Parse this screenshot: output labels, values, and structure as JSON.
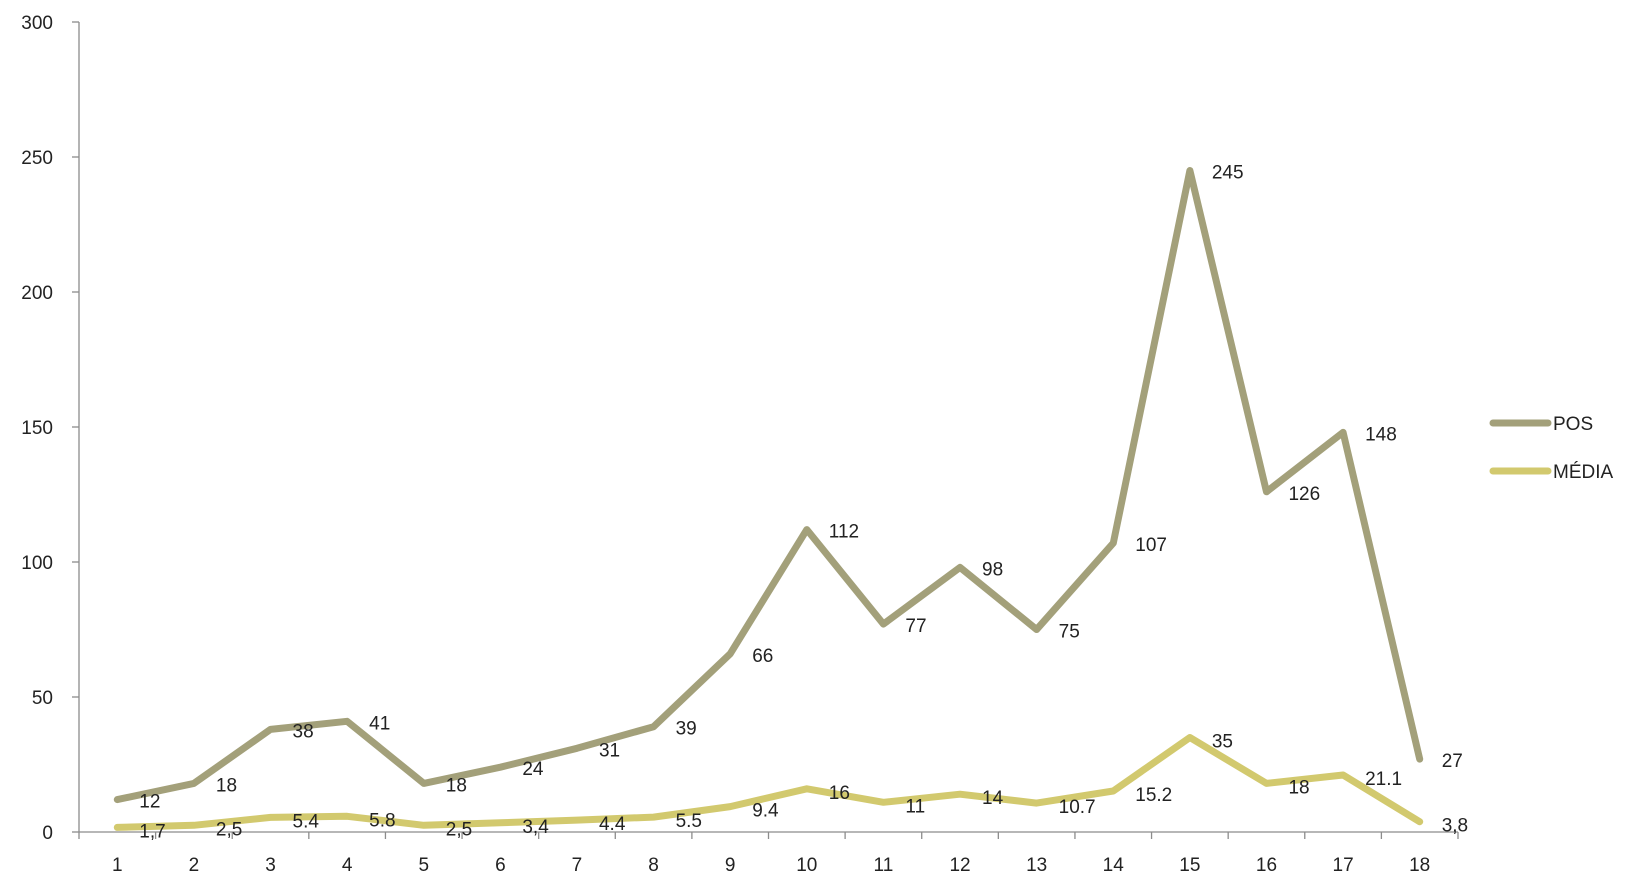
{
  "chart_data": {
    "type": "line",
    "title": "",
    "xlabel": "",
    "ylabel": "",
    "x": [
      "1",
      "2",
      "3",
      "4",
      "5",
      "6",
      "7",
      "8",
      "9",
      "10",
      "11",
      "12",
      "13",
      "14",
      "15",
      "16",
      "17",
      "18"
    ],
    "ylim": [
      0,
      300
    ],
    "yticks": [
      "0",
      "50",
      "100",
      "150",
      "200",
      "250",
      "300"
    ],
    "grid": false,
    "legend_position": "right",
    "series": [
      {
        "name": "POS",
        "color": "#a3a07a",
        "values": [
          12,
          18,
          38,
          41,
          18,
          24,
          31,
          39,
          66,
          112,
          77,
          98,
          75,
          107,
          245,
          126,
          148,
          27
        ],
        "labels": [
          "12",
          "18",
          "38",
          "41",
          "18",
          "24",
          "31",
          "39",
          "66",
          "112",
          "77",
          "98",
          "75",
          "107",
          "245",
          "126",
          "148",
          "27"
        ]
      },
      {
        "name": "MÉDIA",
        "color": "#d2c96e",
        "values": [
          1.7,
          2.5,
          5.4,
          5.8,
          2.5,
          3.4,
          4.4,
          5.5,
          9.4,
          16,
          11,
          14,
          10.7,
          15.2,
          35,
          18,
          21.1,
          3.8
        ],
        "labels": [
          "1,7",
          "2,5",
          "5.4",
          "5.8",
          "2,5",
          "3,4",
          "4.4",
          "5.5",
          "9.4",
          "16",
          "11",
          "14",
          "10.7",
          "15.2",
          "35",
          "18",
          "21.1",
          "3,8"
        ]
      }
    ]
  }
}
